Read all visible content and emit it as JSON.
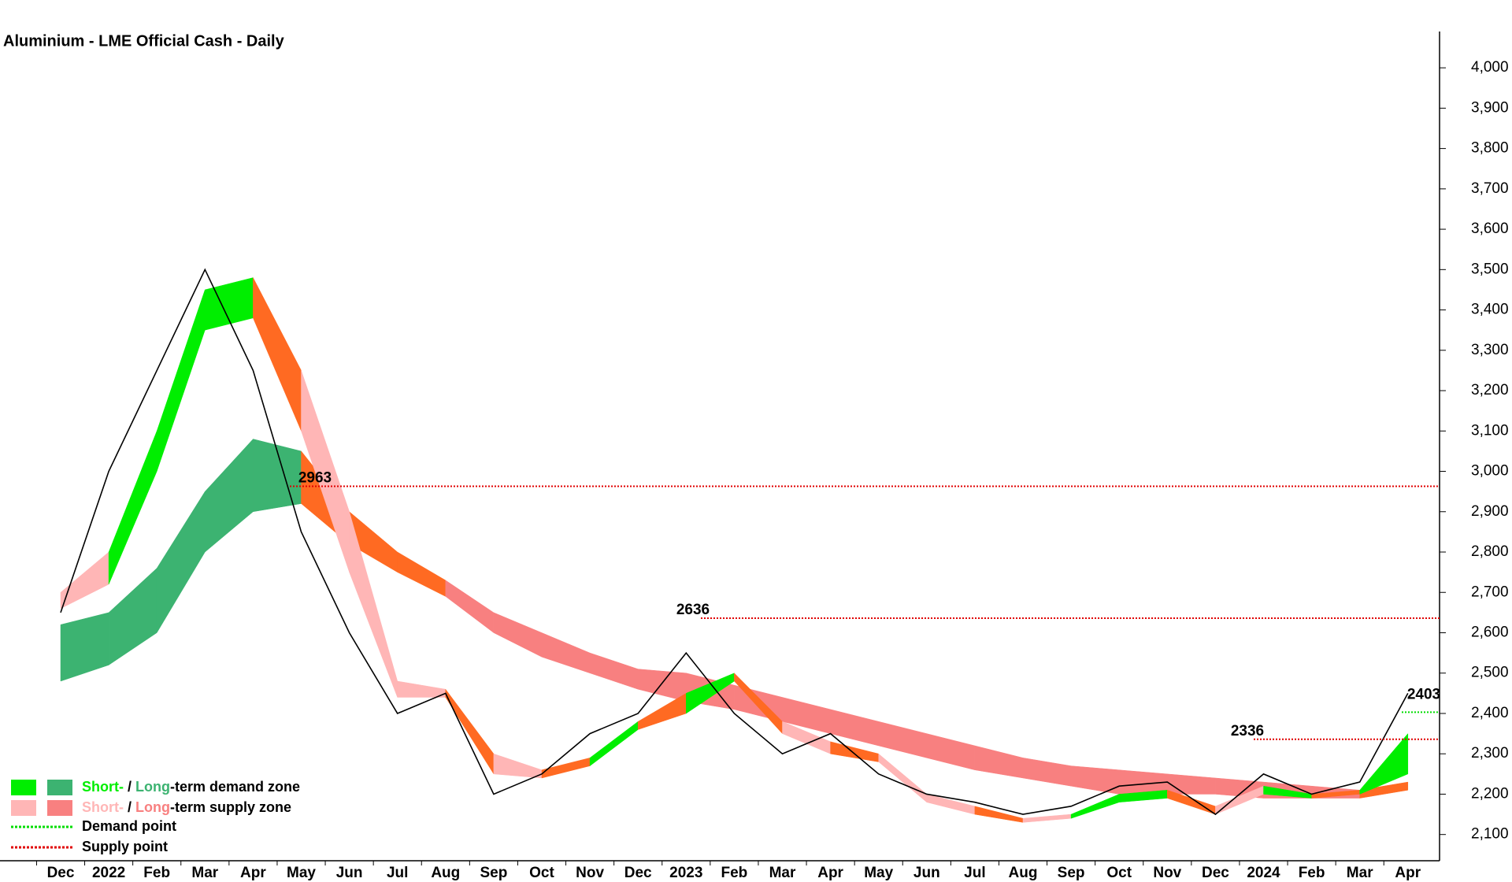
{
  "chart_data": {
    "type": "zone-line",
    "title": "Aluminium - LME Official Cash - Daily",
    "categories": [
      "Dec",
      "2022",
      "Feb",
      "Mar",
      "Apr",
      "May",
      "Jun",
      "Jul",
      "Aug",
      "Sep",
      "Oct",
      "Nov",
      "Dec",
      "2023",
      "Feb",
      "Mar",
      "Apr",
      "May",
      "Jun",
      "Jul",
      "Aug",
      "Sep",
      "Oct",
      "Nov",
      "Dec",
      "2024",
      "Feb",
      "Mar",
      "Apr"
    ],
    "ylim": [
      2035,
      4090
    ],
    "yticks": [
      {
        "value": 2100,
        "label": "2,100"
      },
      {
        "value": 2200,
        "label": "2,200"
      },
      {
        "value": 2300,
        "label": "2,300"
      },
      {
        "value": 2400,
        "label": "2,400"
      },
      {
        "value": 2500,
        "label": "2,500"
      },
      {
        "value": 2600,
        "label": "2,600"
      },
      {
        "value": 2700,
        "label": "2,700"
      },
      {
        "value": 2800,
        "label": "2,800"
      },
      {
        "value": 2900,
        "label": "2,900"
      },
      {
        "value": 3000,
        "label": "3,000"
      },
      {
        "value": 3100,
        "label": "3,100"
      },
      {
        "value": 3200,
        "label": "3,200"
      },
      {
        "value": 3300,
        "label": "3,300"
      },
      {
        "value": 3400,
        "label": "3,400"
      },
      {
        "value": 3500,
        "label": "3,500"
      },
      {
        "value": 3600,
        "label": "3,600"
      },
      {
        "value": 3700,
        "label": "3,700"
      },
      {
        "value": 3800,
        "label": "3,800"
      },
      {
        "value": 3900,
        "label": "3,900"
      },
      {
        "value": 4000,
        "label": "4,000"
      }
    ],
    "price": {
      "color": "#000000",
      "values": [
        2650,
        3000,
        3250,
        3500,
        3250,
        2850,
        2600,
        2400,
        2450,
        2200,
        2250,
        2350,
        2400,
        2550,
        2400,
        2300,
        2350,
        2250,
        2200,
        2180,
        2150,
        2170,
        2220,
        2230,
        2150,
        2250,
        2200,
        2230,
        2450
      ]
    },
    "long_term_band": {
      "upper": [
        2620,
        2650,
        2760,
        2950,
        3080,
        3050,
        2900,
        2800,
        2730,
        2650,
        2600,
        2550,
        2510,
        2500,
        2470,
        2440,
        2410,
        2380,
        2350,
        2320,
        2290,
        2270,
        2260,
        2250,
        2240,
        2230,
        2220,
        2210,
        2230
      ],
      "lower": [
        2480,
        2520,
        2600,
        2800,
        2900,
        2920,
        2820,
        2750,
        2690,
        2600,
        2540,
        2500,
        2460,
        2430,
        2410,
        2380,
        2350,
        2320,
        2290,
        2260,
        2240,
        2220,
        2200,
        2200,
        2200,
        2190,
        2190,
        2190,
        2210
      ],
      "colors": [
        "#3cb371",
        "#3cb371",
        "#3cb371",
        "#3cb371",
        "#3cb371",
        "#ff6a22",
        "#ff6a22",
        "#ff6a22",
        "#f88080",
        "#f88080",
        "#f88080",
        "#f88080",
        "#f88080",
        "#f88080",
        "#f88080",
        "#f88080",
        "#f88080",
        "#f88080",
        "#f88080",
        "#f88080",
        "#f88080",
        "#f88080",
        "#f88080",
        "#f88080",
        "#f88080",
        "#f88080",
        "#f88080",
        "#ff6a22",
        "#ff6a22"
      ]
    },
    "short_term_band": {
      "upper": [
        2700,
        2800,
        3100,
        3450,
        3480,
        3250,
        2900,
        2480,
        2460,
        2300,
        2260,
        2290,
        2380,
        2450,
        2500,
        2380,
        2330,
        2300,
        2200,
        2170,
        2140,
        2150,
        2200,
        2210,
        2170,
        2220,
        2200,
        2210,
        2350
      ],
      "lower": [
        2660,
        2720,
        3000,
        3350,
        3380,
        3100,
        2750,
        2440,
        2440,
        2250,
        2240,
        2270,
        2360,
        2400,
        2480,
        2350,
        2300,
        2280,
        2180,
        2150,
        2130,
        2140,
        2180,
        2190,
        2150,
        2200,
        2190,
        2200,
        2250
      ],
      "colors": [
        "#ffb6b6",
        "#00ee00",
        "#00ee00",
        "#00ee00",
        "#ff6a22",
        "#ffb6b6",
        "#ffb6b6",
        "#ffb6b6",
        "#ff6a22",
        "#ffb6b6",
        "#ff6a22",
        "#00ee00",
        "#ff6a22",
        "#00ee00",
        "#ff6a22",
        "#ffb6b6",
        "#ff6a22",
        "#ffb6b6",
        "#ffb6b6",
        "#ff6a22",
        "#ffb6b6",
        "#00ee00",
        "#00ee00",
        "#ff6a22",
        "#ffb6b6",
        "#00ee00",
        "#ff6a22",
        "#00ee00",
        "#00ee00"
      ]
    },
    "levels": [
      {
        "value": 2963,
        "color": "#e00000"
      },
      {
        "value": 2636,
        "color": "#e00000"
      },
      {
        "value": 2336,
        "color": "#e00000"
      },
      {
        "value": 2403,
        "color": "#00dd00"
      }
    ],
    "legend": [
      {
        "short": "Short-",
        "sep": "/",
        "long": "Long",
        "rest": "-term demand zone",
        "short_color": "#00ee00",
        "long_color": "#3cb371"
      },
      {
        "short": "Short-",
        "sep": "/",
        "long": "Long",
        "rest": "-term supply zone",
        "short_color": "#ffb6b6",
        "long_color": "#f88080"
      },
      {
        "text": "Demand point",
        "color": "#00dd00"
      },
      {
        "text": "Supply point",
        "color": "#e00000"
      }
    ]
  }
}
